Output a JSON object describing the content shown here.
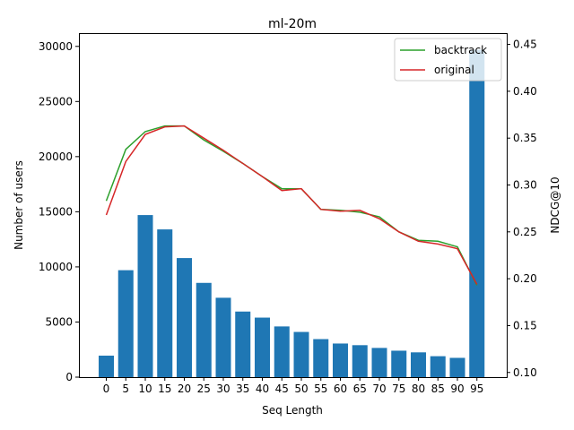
{
  "chart_data": {
    "type": "bar",
    "title": "ml-20m",
    "xlabel": "Seq Length",
    "ylabel": "Number of users",
    "y2label": "NDCG@10",
    "categories": [
      "0",
      "5",
      "10",
      "15",
      "20",
      "25",
      "30",
      "35",
      "40",
      "45",
      "50",
      "55",
      "60",
      "65",
      "70",
      "75",
      "80",
      "85",
      "90",
      "95"
    ],
    "bar_color": "#1f77b4",
    "values": [
      1950,
      9700,
      14700,
      13400,
      10800,
      8550,
      7200,
      5950,
      5400,
      4600,
      4100,
      3450,
      3050,
      2900,
      2650,
      2400,
      2250,
      1900,
      1750,
      29700
    ],
    "ylim": [
      0,
      31200
    ],
    "yticks": [
      0,
      5000,
      10000,
      15000,
      20000,
      25000,
      30000
    ],
    "y2lim": [
      0.095,
      0.462
    ],
    "y2ticks": [
      0.1,
      0.15,
      0.2,
      0.25,
      0.3,
      0.35,
      0.4,
      0.45
    ],
    "y2tick_labels": [
      "0.10",
      "0.15",
      "0.20",
      "0.25",
      "0.30",
      "0.35",
      "0.40",
      "0.45"
    ],
    "series": [
      {
        "name": "backtrack",
        "color": "#2ca02c",
        "axis": "right",
        "values": [
          0.283,
          0.338,
          0.357,
          0.363,
          0.363,
          0.348,
          0.336,
          0.323,
          0.309,
          0.296,
          0.296,
          0.274,
          0.273,
          0.271,
          0.266,
          0.25,
          0.241,
          0.24,
          0.234,
          0.193
        ]
      },
      {
        "name": "original",
        "color": "#d62728",
        "axis": "right",
        "values": [
          0.268,
          0.325,
          0.354,
          0.362,
          0.363,
          0.35,
          0.337,
          0.323,
          0.309,
          0.294,
          0.296,
          0.274,
          0.272,
          0.273,
          0.264,
          0.25,
          0.24,
          0.237,
          0.232,
          0.194
        ]
      }
    ],
    "legend_position": "top-right",
    "grid": false
  }
}
